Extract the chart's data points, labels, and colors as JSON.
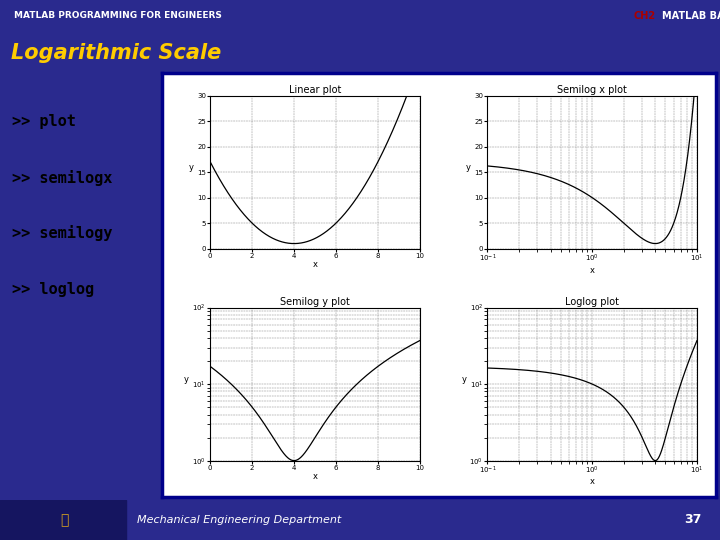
{
  "header_left_bg": "#000000",
  "header_right_bg": "#2a2a8e",
  "ch2_color": "#aa0000",
  "header_left_text": "MATLAB PROGRAMMING FOR ENGINEERS",
  "header_right_text": "MATLAB BASICS",
  "ch2_text": "CH2",
  "slide_title": "Logarithmic Scale",
  "slide_title_color": "#ffcc00",
  "slide_bg_color": "#2a2a8e",
  "left_panel_bg": "#ffffff",
  "bullet_color": "#000000",
  "bullets": [
    ">> plot",
    ">> semilogx",
    ">> semilogy",
    ">> loglog"
  ],
  "bullet_fontsize": 11,
  "plot_titles": [
    "Linear plot",
    "Semilog x plot",
    "Semilog y plot",
    "Loglog plot"
  ],
  "footer_text": "Mechanical Engineering Department",
  "page_number": "37",
  "footer_bg": "#1a1a6e",
  "plot_border_color": "#00008b"
}
